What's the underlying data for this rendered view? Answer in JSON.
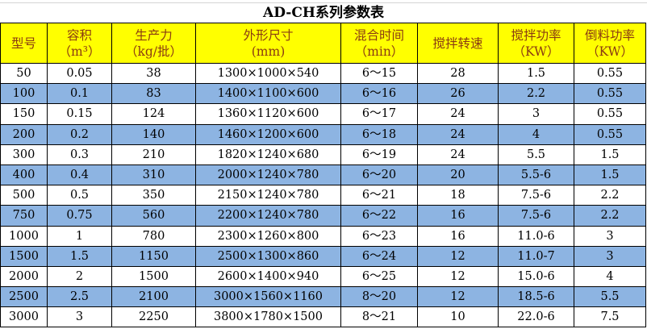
{
  "title": "AD-CH系列参数表",
  "colors": {
    "header_bg": "#ffff00",
    "header_text": "#8a3b12",
    "alt_row_bg": "#8db4e2"
  },
  "headers": [
    {
      "line1": "型号",
      "line2": ""
    },
    {
      "line1": "容积",
      "line2": "（m³）"
    },
    {
      "line1": "生产力",
      "line2": "（kg/批）"
    },
    {
      "line1": "外形尺寸",
      "line2": "(mm)"
    },
    {
      "line1": "混合时间",
      "line2": "（min）"
    },
    {
      "line1": "搅拌转速",
      "line2": ""
    },
    {
      "line1": "搅拌功率",
      "line2": "（KW）"
    },
    {
      "line1": "倒料功率",
      "line2": "（KW）"
    }
  ],
  "rows": [
    [
      "50",
      "0.05",
      "38",
      "1300×1000×540",
      "6～15",
      "28",
      "1.5",
      "0.55"
    ],
    [
      "100",
      "0.1",
      "83",
      "1400×1100×600",
      "6～16",
      "26",
      "2.2",
      "0.55"
    ],
    [
      "150",
      "0.15",
      "124",
      "1360×1120×600",
      "6～17",
      "24",
      "3",
      "0.55"
    ],
    [
      "200",
      "0.2",
      "140",
      "1460×1200×600",
      "6～18",
      "24",
      "4",
      "0.55"
    ],
    [
      "300",
      "0.3",
      "210",
      "1820×1240×680",
      "6～19",
      "24",
      "5.5",
      "1.5"
    ],
    [
      "400",
      "0.4",
      "310",
      "2000×1240×780",
      "6～20",
      "20",
      "5.5-6",
      "1.5"
    ],
    [
      "500",
      "0.5",
      "350",
      "2150×1240×780",
      "6～21",
      "18",
      "7.5-6",
      "2.2"
    ],
    [
      "750",
      "0.75",
      "560",
      "2200×1240×780",
      "6～22",
      "16",
      "7.5-6",
      "2.2"
    ],
    [
      "1000",
      "1",
      "780",
      "2300×1260×800",
      "6～23",
      "16",
      "11.0-6",
      "3"
    ],
    [
      "1500",
      "1.5",
      "1150",
      "2500×1300×860",
      "6～24",
      "12",
      "11.0-7",
      "3"
    ],
    [
      "2000",
      "2",
      "1500",
      "2600×1400×940",
      "6～25",
      "12",
      "15.0-6",
      "4"
    ],
    [
      "2500",
      "2.5",
      "2100",
      "3000×1560×1160",
      "8～20",
      "12",
      "18.5-6",
      "5.5"
    ],
    [
      "3000",
      "3",
      "2250",
      "3800×1780×1500",
      "8～21",
      "10",
      "22.0-6",
      "7.5"
    ]
  ]
}
